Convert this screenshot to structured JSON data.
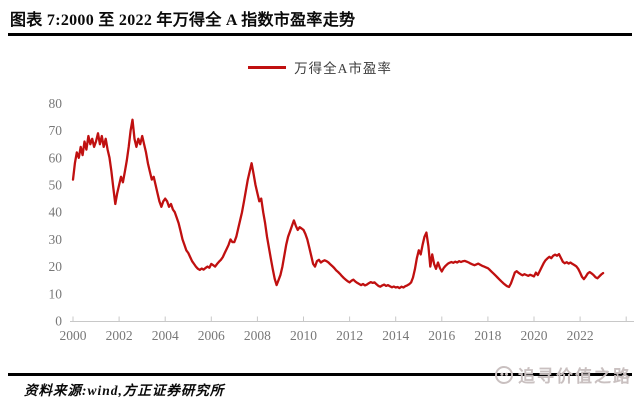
{
  "header": {
    "title": "图表 7:2000 至 2022 年万得全 A 指数市盈率走势"
  },
  "chart_data": {
    "type": "line",
    "title": "2000至2022年万得全A指数市盈率走势",
    "legend": [
      "万得全A市盈率"
    ],
    "legend_position": "top-center",
    "line_color": "#c01010",
    "axis_color": "#c8c8c8",
    "tick_label_color": "#787878",
    "grid": false,
    "xlabel": "",
    "ylabel": "",
    "ylim": [
      0,
      80
    ],
    "y_ticks": [
      0,
      10,
      20,
      30,
      40,
      50,
      60,
      70,
      80
    ],
    "x_ticks": [
      2000,
      2002,
      2004,
      2006,
      2008,
      2010,
      2012,
      2014,
      2016,
      2018,
      2020,
      2022
    ],
    "x_unlabeled_ticks": [
      2024
    ],
    "x_range": [
      2000,
      2024.3
    ],
    "series": [
      {
        "name": "万得全A市盈率",
        "start_year": 2000,
        "points_per_year": 12,
        "values": [
          52,
          58,
          62,
          60,
          64,
          61,
          66,
          63,
          68,
          65,
          67,
          64,
          66,
          69,
          65,
          68,
          64,
          67,
          63,
          60,
          55,
          49,
          43,
          47,
          50,
          53,
          51,
          55,
          59,
          64,
          70,
          74,
          67,
          64,
          67,
          65,
          68,
          65,
          62,
          58,
          55,
          52,
          53,
          50,
          47,
          44,
          42,
          44,
          45,
          44,
          42,
          43,
          41,
          40,
          38,
          36,
          33,
          30,
          28,
          26,
          25,
          23.5,
          22,
          21,
          20,
          19.2,
          18.8,
          19.3,
          18.9,
          19.5,
          20,
          19.6,
          21,
          20.5,
          20,
          21,
          21.8,
          22.5,
          23.5,
          25,
          26.5,
          28,
          30,
          29,
          29,
          31,
          34,
          37,
          40,
          44,
          48,
          52,
          55,
          58,
          54,
          50,
          47,
          44,
          45,
          40,
          36,
          31,
          27,
          23,
          19,
          15.5,
          13.2,
          15,
          17,
          20,
          24,
          28,
          31,
          33,
          35,
          37,
          35,
          33.5,
          34.5,
          34,
          33.5,
          32,
          30,
          27,
          24,
          21,
          20,
          22,
          22.5,
          21.5,
          22,
          22.3,
          22,
          21.5,
          20.8,
          20.2,
          19.5,
          18.6,
          18,
          17.3,
          16.5,
          15.8,
          15.2,
          14.6,
          14.2,
          14.8,
          15.2,
          14.5,
          14,
          13.6,
          13.2,
          13.6,
          13.1,
          13.4,
          13.9,
          14.3,
          14,
          14.2,
          13.5,
          12.9,
          12.6,
          13.1,
          13.4,
          12.9,
          13.2,
          12.8,
          12.4,
          12.7,
          12.3,
          12.5,
          12.1,
          12.6,
          12.3,
          12.8,
          13.1,
          13.5,
          14.2,
          16,
          19,
          23,
          26,
          24.5,
          28,
          31,
          32.5,
          27.5,
          20,
          24.5,
          21,
          19.2,
          21.5,
          19.5,
          18.2,
          19.5,
          20.3,
          21,
          21.4,
          21.7,
          21.4,
          21.8,
          21.5,
          22,
          21.7,
          22,
          22.1,
          21.8,
          21.5,
          21.1,
          20.8,
          20.5,
          20.8,
          21.1,
          20.7,
          20.3,
          20,
          19.7,
          19.4,
          18.8,
          18.1,
          17.4,
          16.7,
          16,
          15.3,
          14.6,
          13.9,
          13.3,
          12.8,
          12.5,
          13.8,
          15.8,
          17.8,
          18.3,
          17.7,
          17.2,
          16.8,
          17.2,
          16.9,
          16.6,
          17,
          16.7,
          16.4,
          17.8,
          16.9,
          18.4,
          19.8,
          21.2,
          22.3,
          23,
          23.6,
          23.1,
          24,
          24.4,
          24,
          24.6,
          23.2,
          21.8,
          21.2,
          21.6,
          21.1,
          21.5,
          21,
          20.6,
          20.1,
          19.2,
          17.8,
          16.2,
          15.4,
          16.4,
          17.5,
          18,
          17.5,
          16.9,
          16.1,
          15.7,
          16.4,
          17.1,
          17.6
        ]
      }
    ]
  },
  "footer": {
    "source": "资料来源:wind,方正证券研究所",
    "watermark_text": "追寻价值之路"
  }
}
